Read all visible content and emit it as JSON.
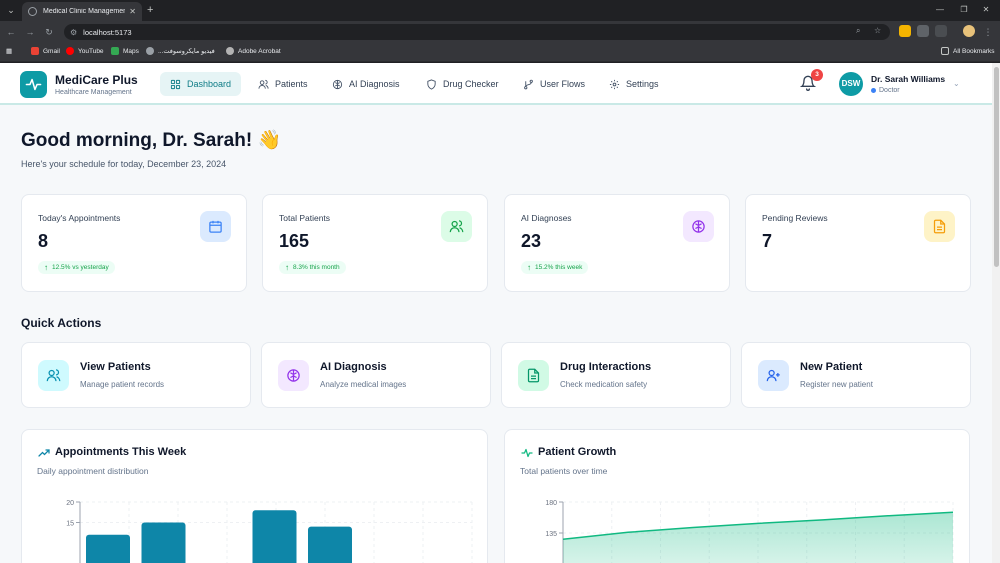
{
  "browser": {
    "tab_title": "Medical Clinic Management Sy...",
    "url": "localhost:5173",
    "bookmarks": [
      {
        "label": "Gmail",
        "color": "#ea4335"
      },
      {
        "label": "YouTube",
        "color": "#ff0000"
      },
      {
        "label": "Maps",
        "color": "#34a853"
      },
      {
        "label": "...فيديو مايكروسوفت",
        "color": "#9aa0a6"
      },
      {
        "label": "Adobe Acrobat",
        "color": "#b3b3b3"
      }
    ],
    "all_bookmarks": "All Bookmarks"
  },
  "app": {
    "brand_name": "MediCare Plus",
    "brand_sub": "Healthcare Management",
    "accent": "#0e9ba5",
    "nav": [
      {
        "label": "Dashboard",
        "icon": "dashboard-icon",
        "active": true
      },
      {
        "label": "Patients",
        "icon": "patients-icon"
      },
      {
        "label": "AI Diagnosis",
        "icon": "brain-icon"
      },
      {
        "label": "Drug Checker",
        "icon": "shield-icon"
      },
      {
        "label": "User Flows",
        "icon": "flow-icon"
      },
      {
        "label": "Settings",
        "icon": "gear-icon"
      }
    ],
    "notifications": "3",
    "user": {
      "initials": "DSW",
      "name": "Dr. Sarah Williams",
      "role": "Doctor"
    }
  },
  "dashboard": {
    "greeting": "Good morning, Dr. Sarah! 👋",
    "schedule": "Here's your schedule for today, December 23, 2024",
    "stats": [
      {
        "label": "Today's Appointments",
        "value": "8",
        "trend": "12.5% vs yesterday",
        "icon": "calendar-icon",
        "color": "#3b82f6"
      },
      {
        "label": "Total Patients",
        "value": "165",
        "trend": "8.3% this month",
        "icon": "users-icon",
        "color": "#16a34a"
      },
      {
        "label": "AI Diagnoses",
        "value": "23",
        "trend": "15.2% this week",
        "icon": "brain-icon",
        "color": "#9333ea"
      },
      {
        "label": "Pending Reviews",
        "value": "7",
        "trend": "",
        "icon": "document-icon",
        "color": "#f59e0b"
      }
    ],
    "quick_actions_title": "Quick Actions",
    "quick_actions": [
      {
        "title": "View Patients",
        "sub": "Manage patient records",
        "icon": "users-icon"
      },
      {
        "title": "AI Diagnosis",
        "sub": "Analyze medical images",
        "icon": "brain-icon"
      },
      {
        "title": "Drug Interactions",
        "sub": "Check medication safety",
        "icon": "document-icon"
      },
      {
        "title": "New Patient",
        "sub": "Register new patient",
        "icon": "user-plus-icon"
      }
    ],
    "charts": [
      {
        "title": "Appointments This Week",
        "sub": "Daily appointment distribution"
      },
      {
        "title": "Patient Growth",
        "sub": "Total patients over time"
      }
    ]
  },
  "chart_data": [
    {
      "type": "bar",
      "title": "Appointments This Week",
      "ytick_labels": [
        "20",
        "15"
      ],
      "ylim": [
        0,
        20
      ],
      "values": [
        12,
        15,
        null,
        18,
        14
      ],
      "grid": true,
      "color": "#0e86a8"
    },
    {
      "type": "area",
      "title": "Patient Growth",
      "ytick_labels": [
        "180",
        "135"
      ],
      "ylim": [
        0,
        180
      ],
      "values": [
        126,
        136,
        143,
        149,
        154,
        160,
        165
      ],
      "grid": true,
      "color": "#10b981"
    }
  ]
}
